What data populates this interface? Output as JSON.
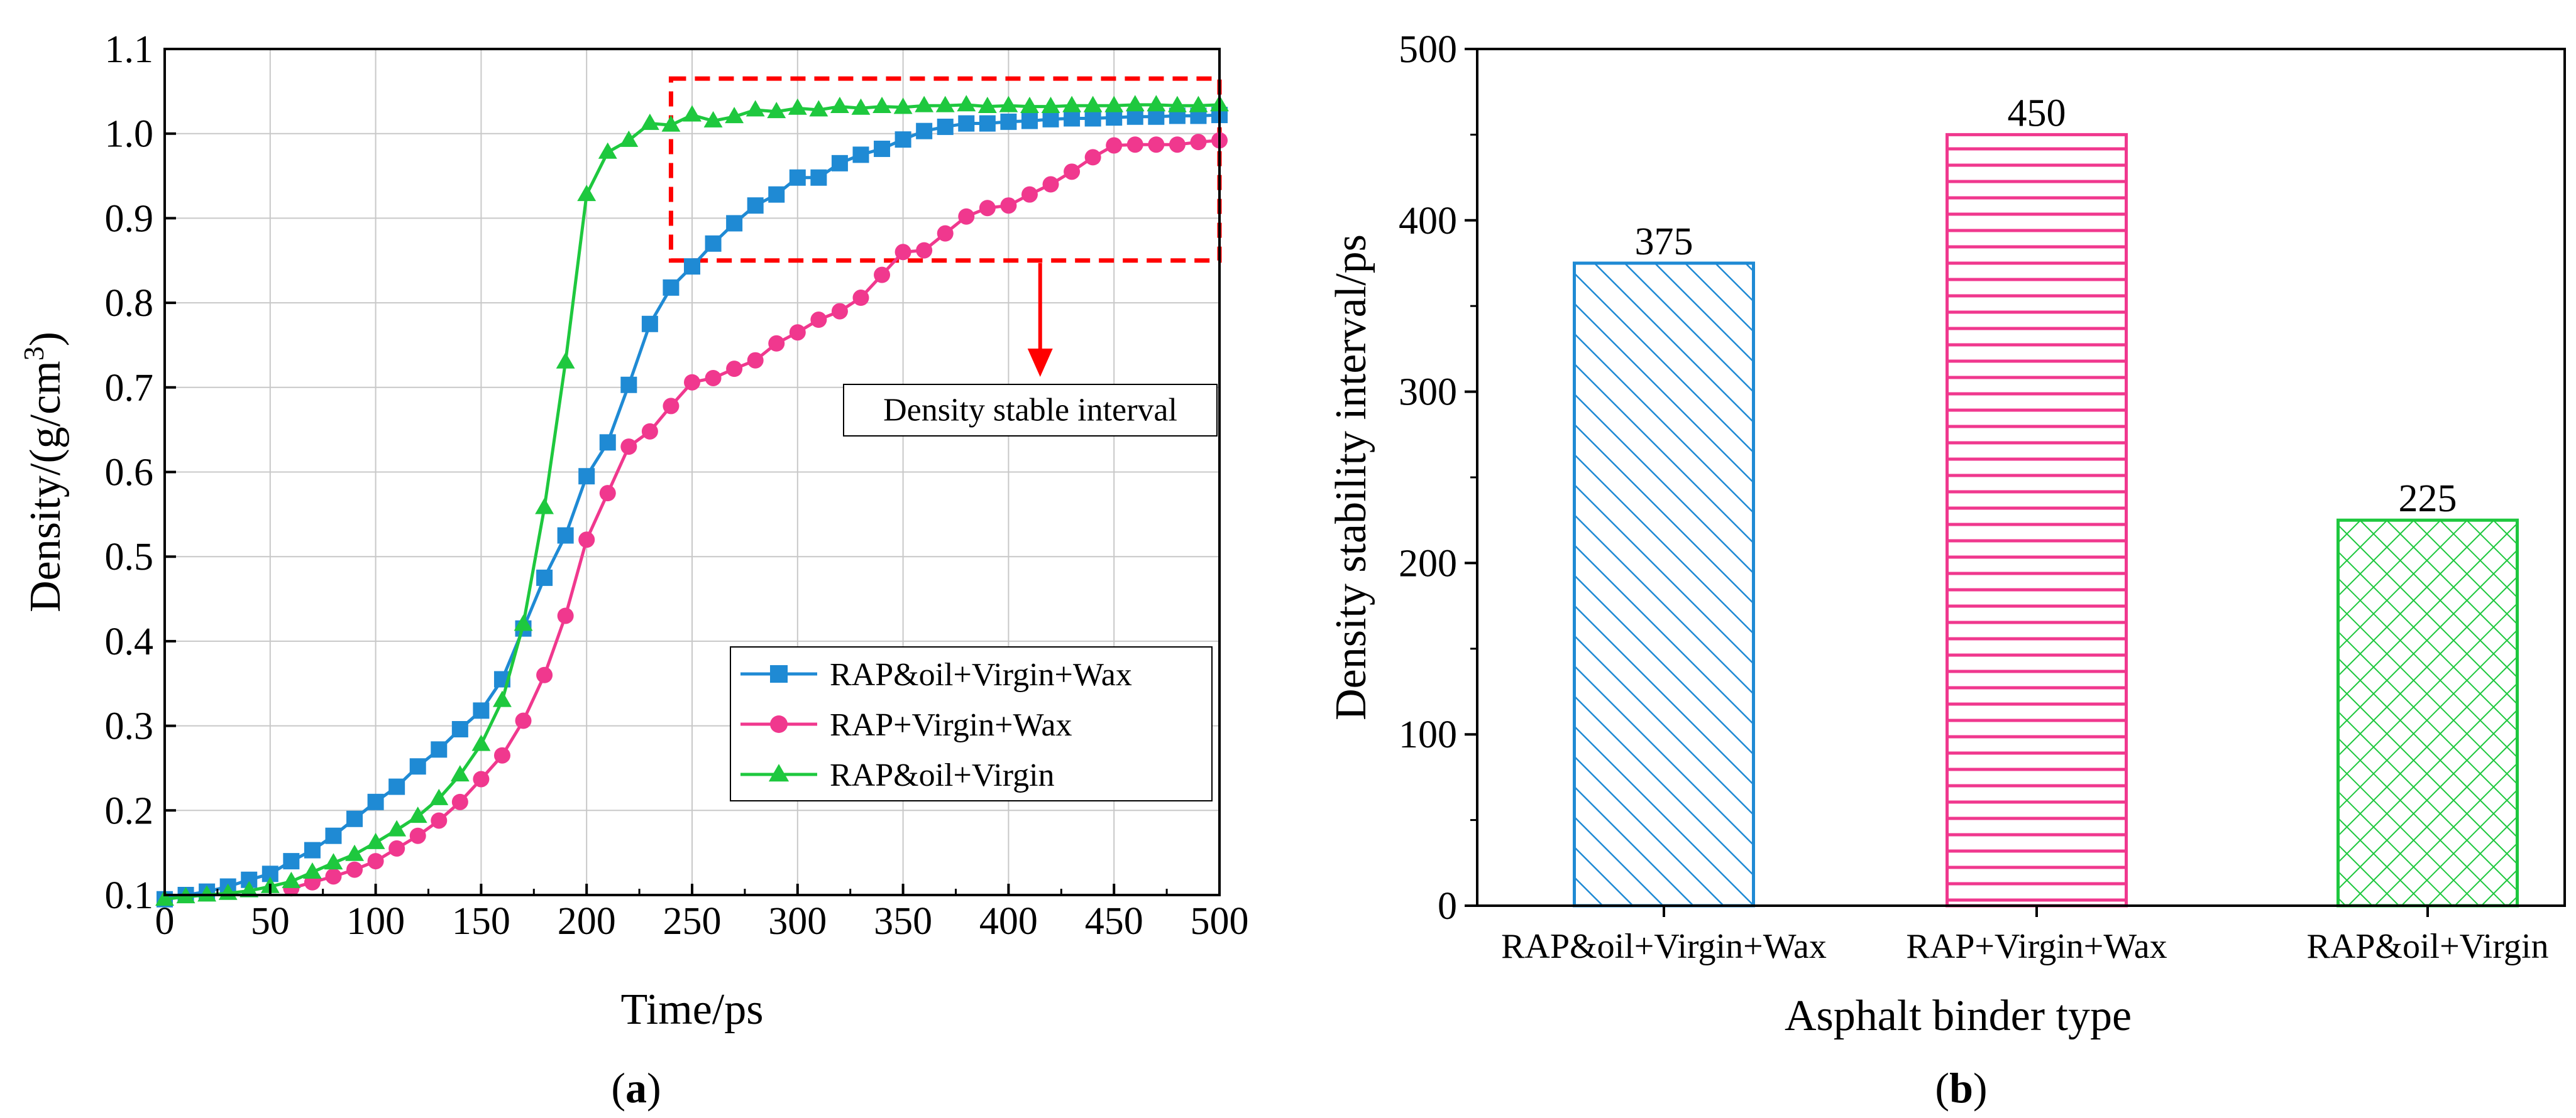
{
  "chart_data": [
    {
      "panel_label": "(a)",
      "type": "line",
      "xlabel": "Time/ps",
      "ylabel": "Density/(g/cm3)",
      "xlim": [
        0,
        500
      ],
      "ylim": [
        0.1,
        1.1
      ],
      "xticks": [
        "0",
        "50",
        "100",
        "150",
        "200",
        "250",
        "300",
        "350",
        "400",
        "450",
        "500"
      ],
      "yticks": [
        "0.1",
        "0.2",
        "0.3",
        "0.4",
        "0.5",
        "0.6",
        "0.7",
        "0.8",
        "0.9",
        "1.0",
        "1.1"
      ],
      "grid": true,
      "legend_position": "lower-right",
      "annotation": "Density stable interval",
      "highlight_region": {
        "x": [
          240,
          500
        ],
        "y": [
          0.85,
          1.065
        ]
      },
      "series": [
        {
          "name": "RAP&oil+Virgin+Wax",
          "color": "#1f8ad4",
          "marker": "square",
          "x": [
            0,
            10,
            20,
            30,
            40,
            50,
            60,
            70,
            80,
            90,
            100,
            110,
            120,
            130,
            140,
            150,
            160,
            170,
            180,
            190,
            200,
            210,
            220,
            230,
            240,
            250,
            260,
            270,
            280,
            290,
            300,
            310,
            320,
            330,
            340,
            350,
            360,
            370,
            380,
            390,
            400,
            410,
            420,
            430,
            440,
            450,
            460,
            470,
            480,
            490,
            500
          ],
          "y": [
            0.095,
            0.1,
            0.104,
            0.11,
            0.118,
            0.125,
            0.14,
            0.153,
            0.17,
            0.19,
            0.21,
            0.228,
            0.252,
            0.272,
            0.296,
            0.318,
            0.355,
            0.415,
            0.475,
            0.525,
            0.595,
            0.635,
            0.703,
            0.775,
            0.818,
            0.843,
            0.87,
            0.894,
            0.915,
            0.928,
            0.948,
            0.948,
            0.965,
            0.975,
            0.982,
            0.993,
            1.003,
            1.008,
            1.012,
            1.012,
            1.014,
            1.015,
            1.017,
            1.018,
            1.018,
            1.019,
            1.02,
            1.02,
            1.021,
            1.021,
            1.022
          ]
        },
        {
          "name": "RAP+Virgin+Wax",
          "color": "#f0388e",
          "marker": "circle",
          "x": [
            60,
            70,
            80,
            90,
            100,
            110,
            120,
            130,
            140,
            150,
            160,
            170,
            180,
            190,
            200,
            210,
            220,
            230,
            240,
            250,
            260,
            270,
            280,
            290,
            300,
            310,
            320,
            330,
            340,
            350,
            360,
            370,
            380,
            390,
            400,
            410,
            420,
            430,
            440,
            450,
            460,
            470,
            480,
            490,
            500
          ],
          "y": [
            0.108,
            0.115,
            0.122,
            0.13,
            0.14,
            0.155,
            0.17,
            0.188,
            0.21,
            0.237,
            0.265,
            0.306,
            0.36,
            0.43,
            0.52,
            0.575,
            0.63,
            0.648,
            0.678,
            0.706,
            0.711,
            0.722,
            0.732,
            0.752,
            0.765,
            0.78,
            0.79,
            0.806,
            0.833,
            0.86,
            0.862,
            0.882,
            0.902,
            0.912,
            0.915,
            0.928,
            0.94,
            0.955,
            0.972,
            0.986,
            0.987,
            0.987,
            0.987,
            0.99,
            0.992
          ]
        },
        {
          "name": "RAP&oil+Virgin",
          "color": "#1ec83e",
          "marker": "triangle",
          "x": [
            0,
            10,
            20,
            30,
            40,
            50,
            60,
            70,
            80,
            90,
            100,
            110,
            120,
            130,
            140,
            150,
            160,
            170,
            180,
            190,
            200,
            210,
            220,
            230,
            240,
            250,
            260,
            270,
            280,
            290,
            300,
            310,
            320,
            330,
            340,
            350,
            360,
            370,
            380,
            390,
            400,
            410,
            420,
            430,
            440,
            450,
            460,
            470,
            480,
            490,
            500
          ],
          "y": [
            0.095,
            0.098,
            0.1,
            0.102,
            0.105,
            0.11,
            0.116,
            0.127,
            0.138,
            0.148,
            0.162,
            0.177,
            0.193,
            0.214,
            0.242,
            0.278,
            0.33,
            0.42,
            0.558,
            0.73,
            0.928,
            0.978,
            0.992,
            1.012,
            1.01,
            1.022,
            1.015,
            1.02,
            1.028,
            1.026,
            1.03,
            1.028,
            1.032,
            1.03,
            1.032,
            1.031,
            1.033,
            1.033,
            1.034,
            1.032,
            1.033,
            1.032,
            1.032,
            1.033,
            1.033,
            1.033,
            1.034,
            1.034,
            1.033,
            1.033,
            1.034
          ]
        }
      ]
    },
    {
      "panel_label": "(b)",
      "type": "bar",
      "xlabel": "Asphalt binder type",
      "ylabel": "Density stability interval/ps",
      "ylim": [
        0,
        500
      ],
      "yticks": [
        "0",
        "100",
        "200",
        "300",
        "400",
        "500"
      ],
      "categories": [
        "RAP&oil+Virgin+Wax",
        "RAP+Virgin+Wax",
        "RAP&oil+Virgin"
      ],
      "values": [
        375,
        450,
        225
      ],
      "value_labels": [
        "375",
        "450",
        "225"
      ],
      "colors": [
        "#1f8ad4",
        "#f0388e",
        "#1ec83e"
      ],
      "patterns": [
        "diagonal",
        "horizontal",
        "crosshatch"
      ]
    }
  ]
}
